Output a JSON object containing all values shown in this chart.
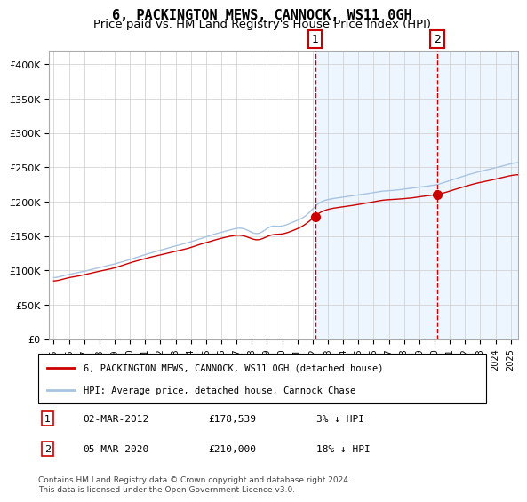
{
  "title": "6, PACKINGTON MEWS, CANNOCK, WS11 0GH",
  "subtitle": "Price paid vs. HM Land Registry's House Price Index (HPI)",
  "legend_line1": "6, PACKINGTON MEWS, CANNOCK, WS11 0GH (detached house)",
  "legend_line2": "HPI: Average price, detached house, Cannock Chase",
  "footnote": "Contains HM Land Registry data © Crown copyright and database right 2024.\nThis data is licensed under the Open Government Licence v3.0.",
  "sale1_date": "02-MAR-2012",
  "sale1_price": 178539,
  "sale1_hpi_diff": "3% ↓ HPI",
  "sale2_date": "05-MAR-2020",
  "sale2_price": 210000,
  "sale2_hpi_diff": "18% ↓ HPI",
  "hpi_color": "#a8c4e0",
  "price_color": "#cc0000",
  "bg_color": "#ddeeff",
  "plot_bg": "#ffffff",
  "grid_color": "#cccccc",
  "ylim": [
    0,
    420000
  ],
  "start_year": 1995,
  "end_year": 2025,
  "sale1_year": 2012.17,
  "sale2_year": 2020.17,
  "title_fontsize": 11,
  "subtitle_fontsize": 9.5
}
